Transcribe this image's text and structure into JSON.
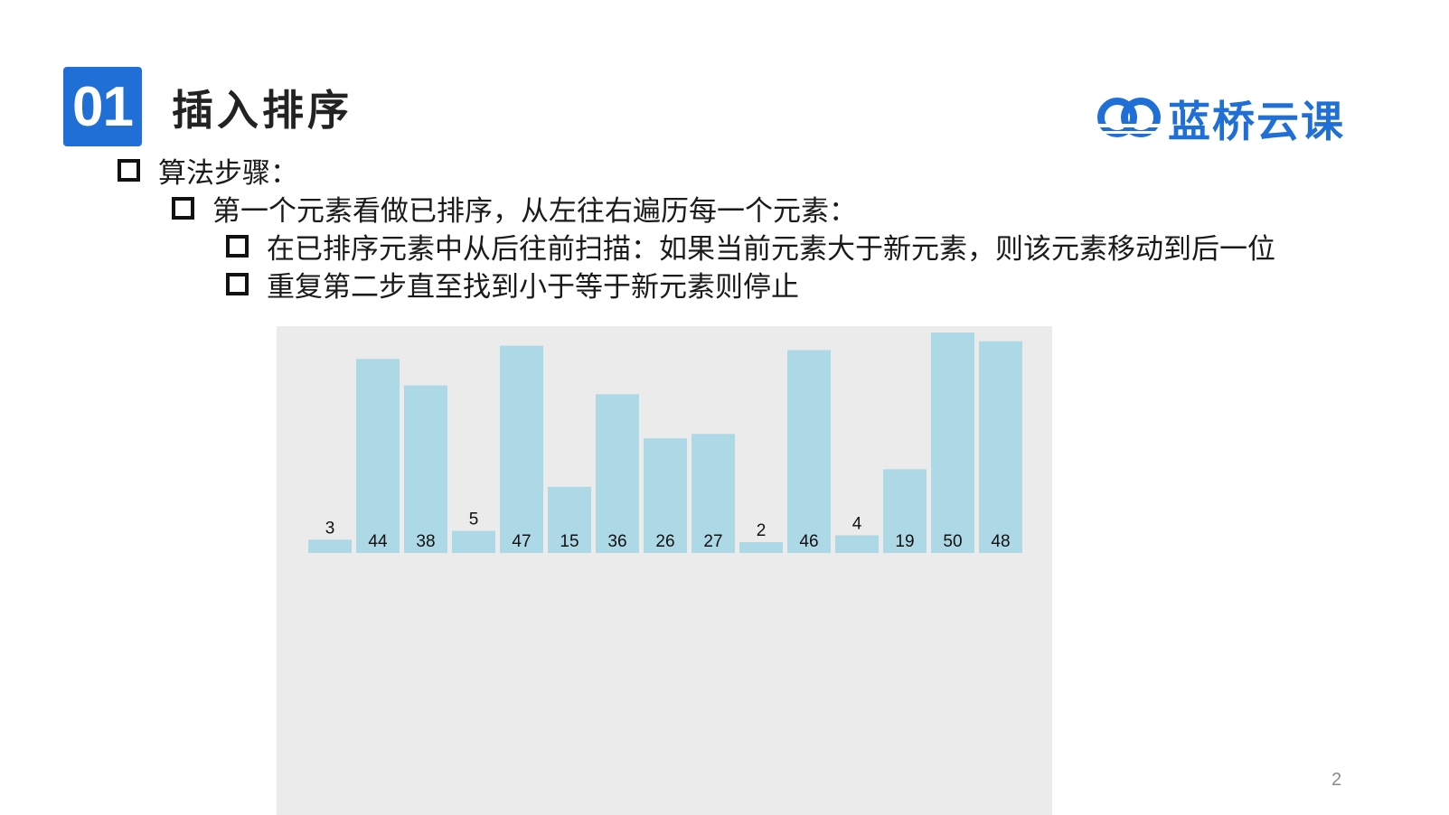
{
  "header": {
    "section_number": "01",
    "title": "插入排序",
    "brand_name": "蓝桥云课",
    "brand_color": "#1f6fd6"
  },
  "bullets": [
    {
      "level": 1,
      "text": "算法步骤："
    },
    {
      "level": 2,
      "text": "第一个元素看做已排序，从左往右遍历每一个元素："
    },
    {
      "level": 3,
      "text": "在已排序元素中从后往前扫描：如果当前元素大于新元素，则该元素移动到后一位"
    },
    {
      "level": 3,
      "text": "重复第二步直至找到小于等于新元素则停止"
    }
  ],
  "page_number": "2",
  "chart_data": {
    "type": "bar",
    "values": [
      3,
      44,
      38,
      5,
      47,
      15,
      36,
      26,
      27,
      2,
      46,
      4,
      19,
      50,
      48
    ],
    "bar_color": "#add8e6",
    "background_color": "#ebebeb",
    "ylim": [
      0,
      50
    ],
    "grid": false
  }
}
